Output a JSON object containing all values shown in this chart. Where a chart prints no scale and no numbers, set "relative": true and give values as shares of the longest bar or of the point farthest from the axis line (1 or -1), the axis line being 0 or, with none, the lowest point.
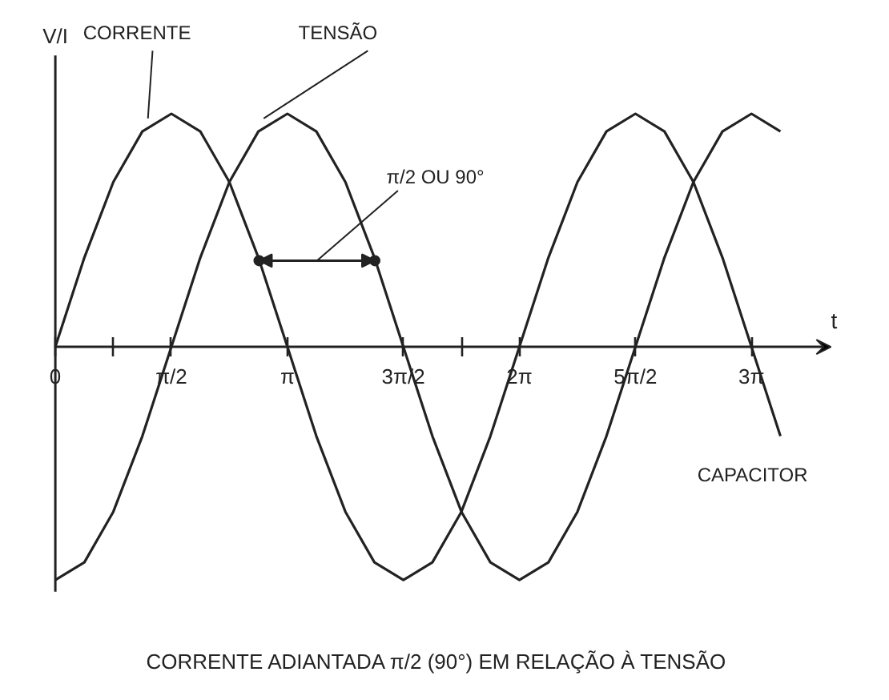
{
  "chart_data": {
    "type": "line",
    "relative": true,
    "xlabel": "t",
    "ylabel": "V/I",
    "x": [
      0,
      0.393,
      0.785,
      1.178,
      1.571,
      1.963,
      2.356,
      2.749,
      3.142,
      3.534,
      3.927,
      4.32,
      4.712,
      5.105,
      5.498,
      5.89,
      6.283,
      6.676,
      7.069,
      7.461,
      7.854,
      8.247,
      8.639,
      9.032,
      9.425,
      9.817
    ],
    "xlim": [
      0,
      10.5
    ],
    "xticks": [
      {
        "value": 0,
        "label": "0"
      },
      {
        "value": 0.785,
        "label": null
      },
      {
        "value": 1.571,
        "label": "π/2"
      },
      {
        "value": 3.142,
        "label": "π"
      },
      {
        "value": 4.712,
        "label": "3π/2"
      },
      {
        "value": 5.498,
        "label": null
      },
      {
        "value": 6.283,
        "label": "2π"
      },
      {
        "value": 7.854,
        "label": "5π/2"
      },
      {
        "value": 9.425,
        "label": "3π"
      }
    ],
    "series": [
      {
        "name": "CORRENTE",
        "color": "#222222",
        "values": [
          0,
          0.383,
          0.707,
          0.924,
          1,
          0.924,
          0.707,
          0.383,
          0,
          -0.383,
          -0.707,
          -0.924,
          -1,
          -0.924,
          -0.707,
          -0.383,
          0,
          0.383,
          0.707,
          0.924,
          1,
          0.924,
          0.707,
          0.383,
          0,
          -0.383
        ]
      },
      {
        "name": "TENSÃO",
        "color": "#222222",
        "values": [
          -1,
          -0.924,
          -0.707,
          -0.383,
          0,
          0.383,
          0.707,
          0.924,
          1,
          0.924,
          0.707,
          0.383,
          0,
          -0.383,
          -0.707,
          -0.924,
          -1,
          -0.924,
          -0.707,
          -0.383,
          0,
          0.383,
          0.707,
          0.924,
          1,
          0.924
        ]
      }
    ],
    "annotations": [
      "π/2 OU 90°",
      "CAPACITOR",
      "CORRENTE ADIANTADA π/2 (90°) EM RELAÇÃO À TENSÃO"
    ],
    "grid": false,
    "marker": "none",
    "line_style": "solid"
  }
}
